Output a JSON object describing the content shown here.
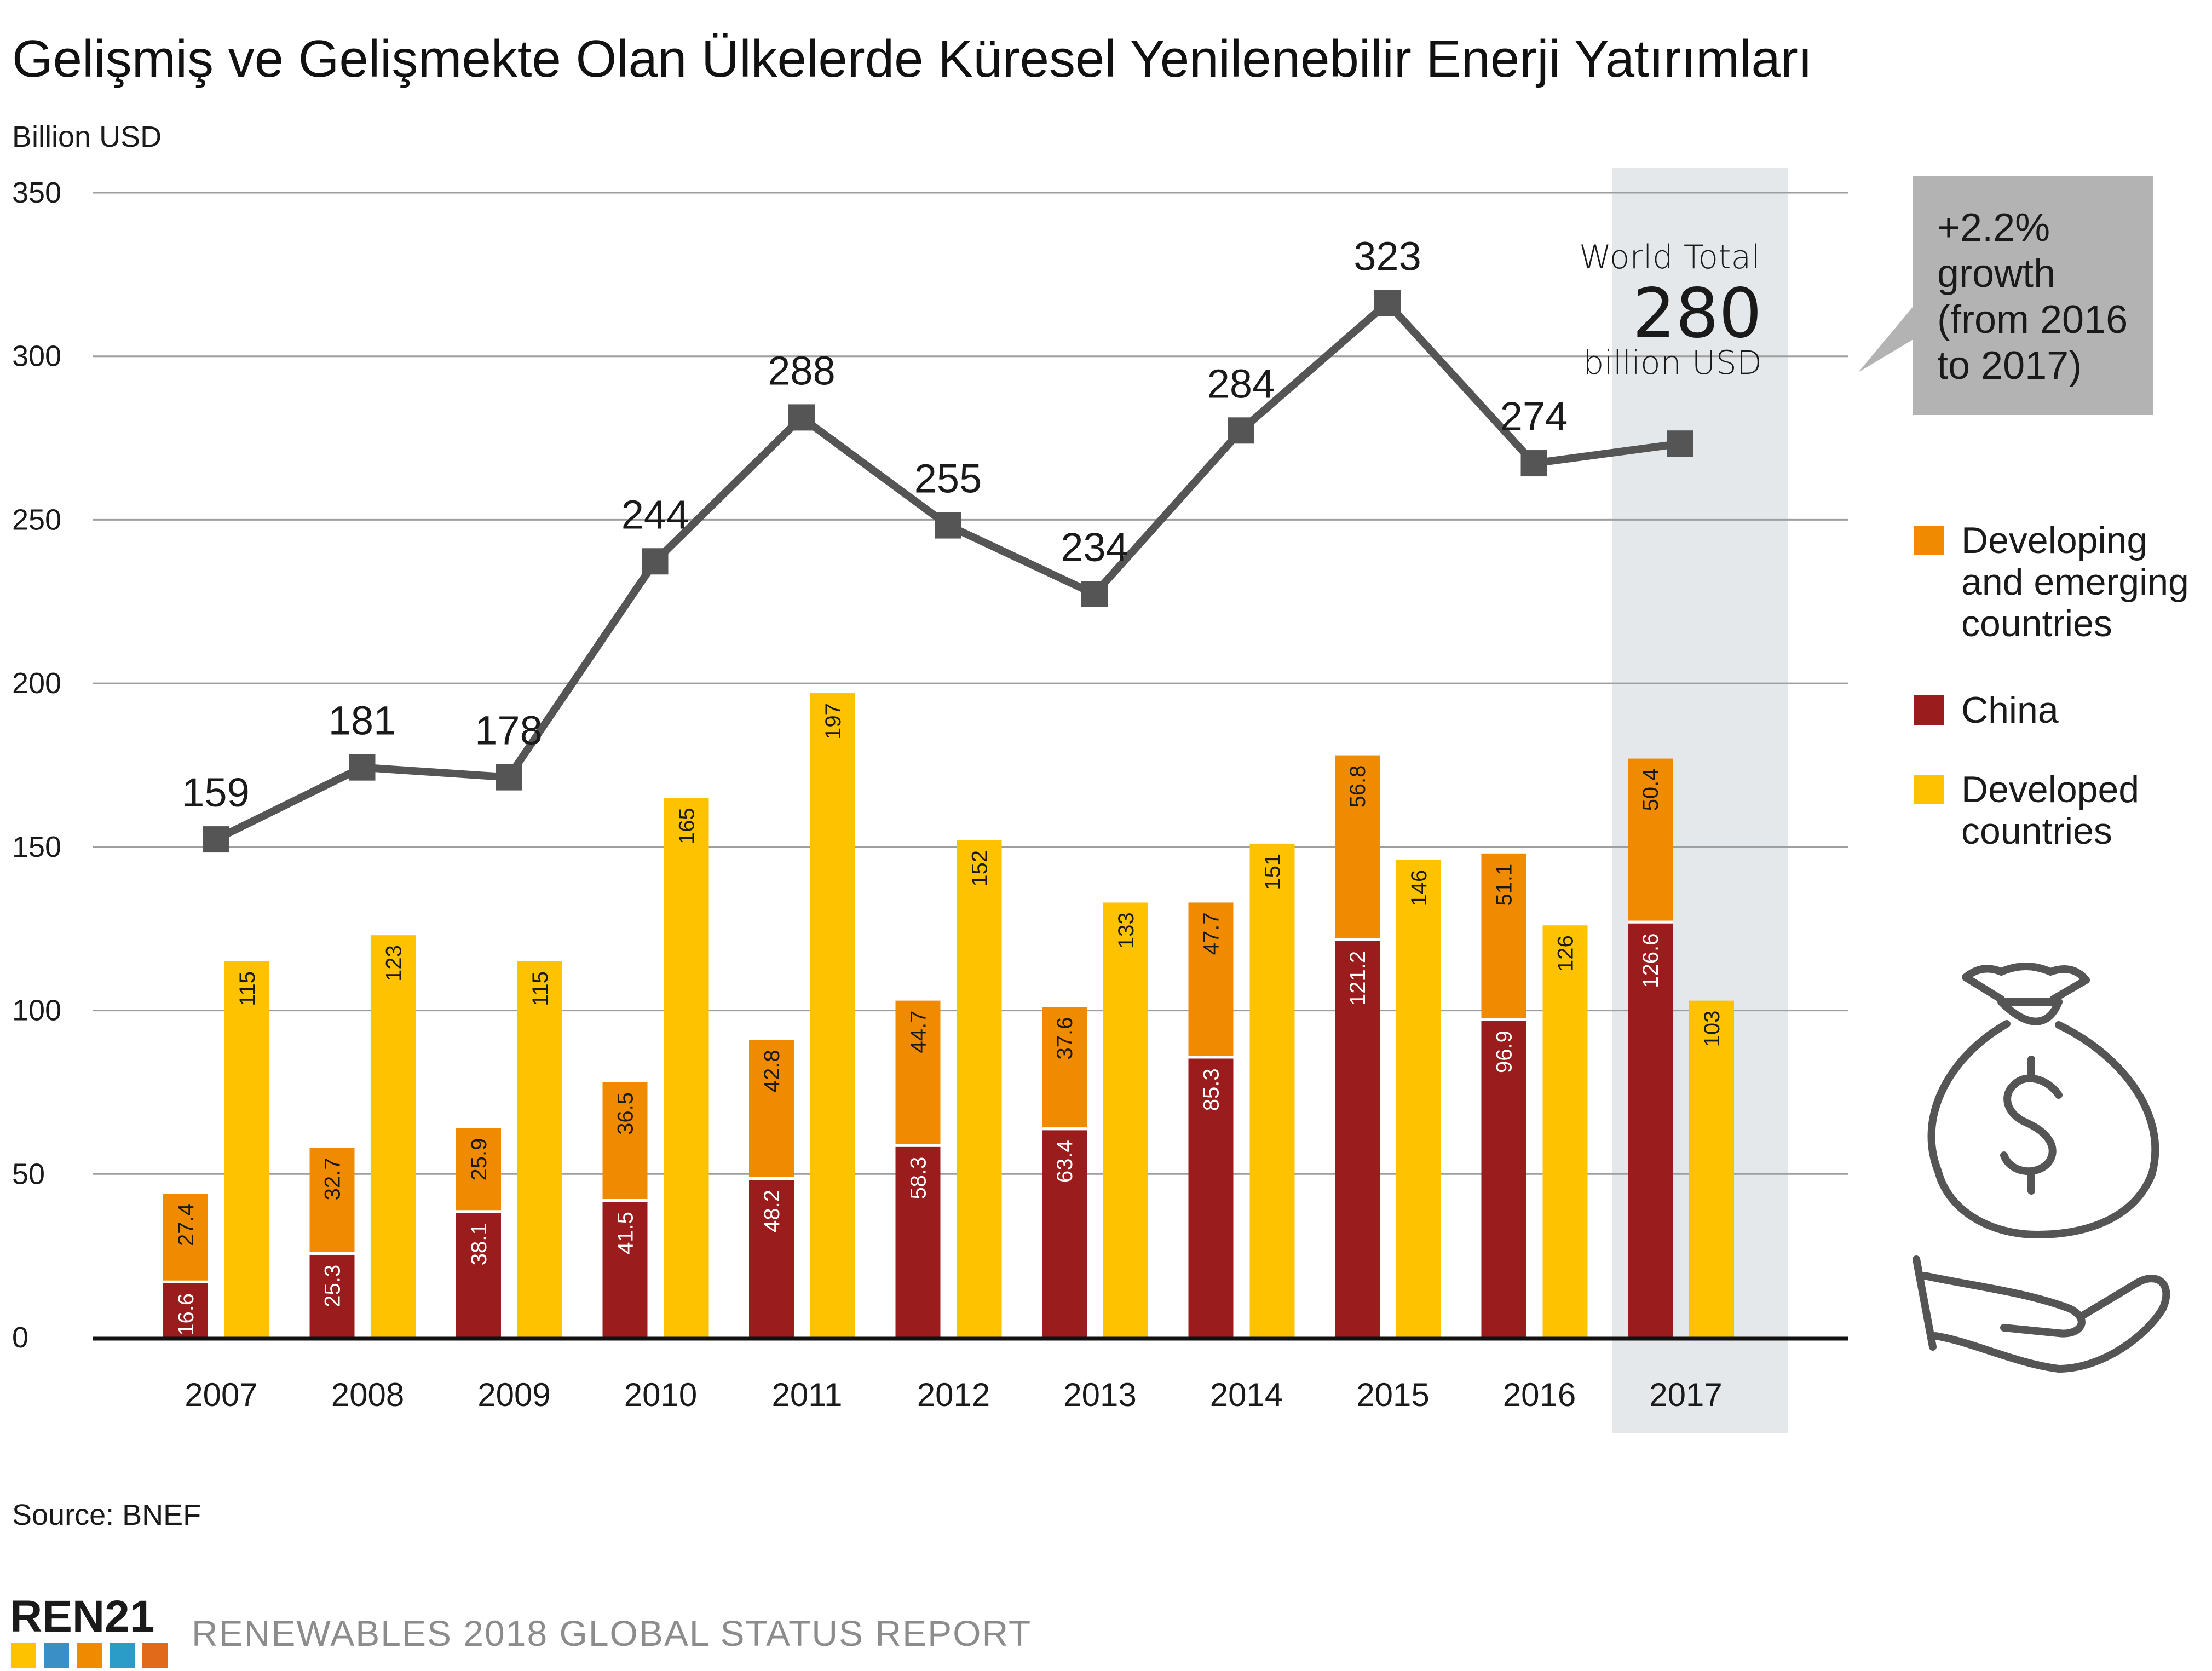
{
  "chart_data": {
    "type": "bar",
    "title": "Gelişmiş ve Gelişmekte Olan Ülkelerde Küresel Yenilenebilir Enerji Yatırımları",
    "ylabel": "Billion USD",
    "ylim": [
      0,
      350
    ],
    "yticks": [
      "0",
      "50",
      "100",
      "150",
      "200",
      "250",
      "300",
      "350"
    ],
    "categories": [
      "2007",
      "2008",
      "2009",
      "2010",
      "2011",
      "2012",
      "2013",
      "2014",
      "2015",
      "2016",
      "2017"
    ],
    "series": [
      {
        "name": "China",
        "stack": "developing",
        "color": "#9a1c1c",
        "values": [
          16.6,
          25.3,
          38.1,
          41.5,
          48.2,
          58.3,
          63.4,
          85.3,
          121.2,
          96.9,
          126.6
        ],
        "labels": [
          "16.6",
          "25.3",
          "38.1",
          "41.5",
          "48.2",
          "58.3",
          "63.4",
          "85.3",
          "121.2",
          "96.9",
          "126.6"
        ]
      },
      {
        "name": "Developing and emerging countries",
        "stack": "developing",
        "color": "#f08a00",
        "values": [
          27.4,
          32.7,
          25.9,
          36.5,
          42.8,
          44.7,
          37.6,
          47.7,
          56.8,
          51.1,
          50.4
        ],
        "labels": [
          "27.4",
          "32.7",
          "25.9",
          "36.5",
          "42.8",
          "44.7",
          "37.6",
          "47.7",
          "56.8",
          "51.1",
          "50.4"
        ]
      },
      {
        "name": "Developed countries",
        "stack": "developed",
        "color": "#fec200",
        "values": [
          115,
          123,
          115,
          165,
          197,
          152,
          133,
          151,
          146,
          126,
          103
        ],
        "labels": [
          "115",
          "123",
          "115",
          "165",
          "197",
          "152",
          "133",
          "151",
          "146",
          "126",
          "103"
        ]
      }
    ],
    "world_total": {
      "name": "World Total",
      "values": [
        159,
        181,
        178,
        244,
        288,
        255,
        234,
        284,
        323,
        274,
        280
      ],
      "labels": [
        "159",
        "181",
        "178",
        "244",
        "288",
        "255",
        "234",
        "284",
        "323",
        "274",
        ""
      ]
    },
    "legend": [
      {
        "lines": [
          "Developing",
          "and emerging",
          "countries"
        ],
        "color": "#f08a00"
      },
      {
        "lines": [
          "China"
        ],
        "color": "#9a1c1c"
      },
      {
        "lines": [
          "Developed",
          "countries"
        ],
        "color": "#fec200"
      }
    ],
    "highlight": {
      "category": "2017",
      "caption": "World Total",
      "value": "280",
      "unit": "billion USD"
    },
    "callout": [
      "+2.2%",
      "growth",
      "(from 2016",
      "to 2017)"
    ]
  },
  "footer": {
    "source": "Source: BNEF",
    "brand": "REN21",
    "report": "RENEWABLES 2018 GLOBAL STATUS REPORT"
  },
  "colors": {
    "line": "#555555",
    "highlight_band": "#e5e8ea",
    "callout_bg": "#b3b3b3",
    "grid": "#9e9e9e",
    "axis": "#111111"
  }
}
